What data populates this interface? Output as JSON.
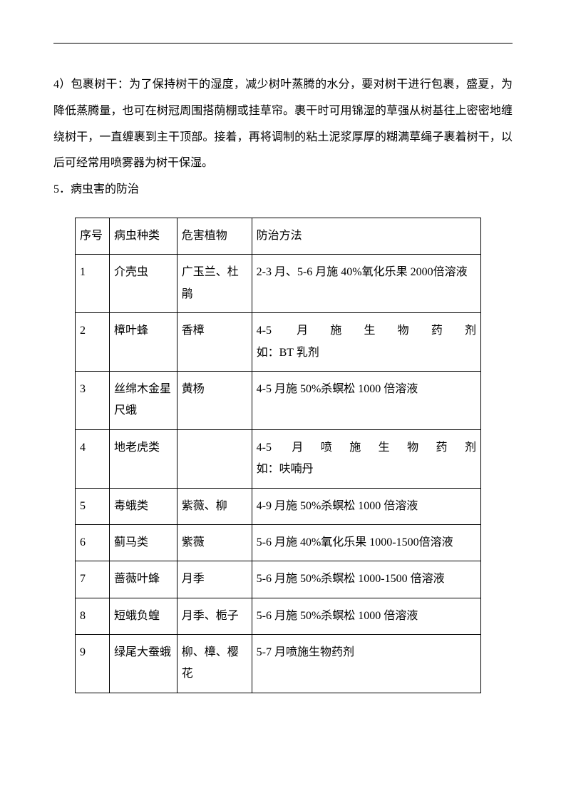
{
  "paragraph": "4）包裹树干：为了保持树干的湿度，减少树叶蒸腾的水分，要对树干进行包裹，盛夏，为降低蒸腾量，也可在树冠周围搭荫棚或挂草帘。裹干时可用锦湿的草强从树基往上密密地缠绕树干，一直缠裹到主干顶部。接着，再将调制的粘土泥浆厚厚的糊满草绳子裹着树干，以后可经常用喷雾器为树干保湿。",
  "heading": "5．病虫害的防治",
  "table": {
    "header": {
      "seq": "序号",
      "type": "病虫种类",
      "plant": "危害植物",
      "method": "防治方法"
    },
    "rows": [
      {
        "seq": "1",
        "type": "介壳虫",
        "plant": "广玉兰、杜鹃",
        "method": "2-3 月、5-6 月施 40%氧化乐果 2000倍溶液"
      },
      {
        "seq": "2",
        "type": "樟叶蜂",
        "plant": "香樟",
        "method_line1": "4-5 月施生物药剂",
        "method_line2": "如：BT 乳剂"
      },
      {
        "seq": "3",
        "type": "丝绵木金星尺蛾",
        "plant": "黄杨",
        "method": "4-5 月施 50%杀螟松 1000 倍溶液"
      },
      {
        "seq": "4",
        "type": "地老虎类",
        "plant": "",
        "method_line1": "4-5 月喷施生物药剂",
        "method_line2": "如：呋喃丹"
      },
      {
        "seq": "5",
        "type": "毒蛾类",
        "plant": "紫薇、柳",
        "method": "4-9 月施 50%杀螟松 1000 倍溶液"
      },
      {
        "seq": "6",
        "type": "蓟马类",
        "plant": "紫薇",
        "method": "5-6 月施 40%氧化乐果 1000-1500倍溶液"
      },
      {
        "seq": "7",
        "type": "蔷薇叶蜂",
        "plant": "月季",
        "method": "5-6 月施 50%杀螟松 1000-1500 倍溶液"
      },
      {
        "seq": "8",
        "type": "短蛾负蝗",
        "plant": "月季、栀子",
        "method": "5-6 月施 50%杀螟松 1000 倍溶液"
      },
      {
        "seq": "9",
        "type": "绿尾大蚕蛾",
        "plant": "柳、樟、樱花",
        "method": "5-7 月喷施生物药剂"
      }
    ]
  }
}
